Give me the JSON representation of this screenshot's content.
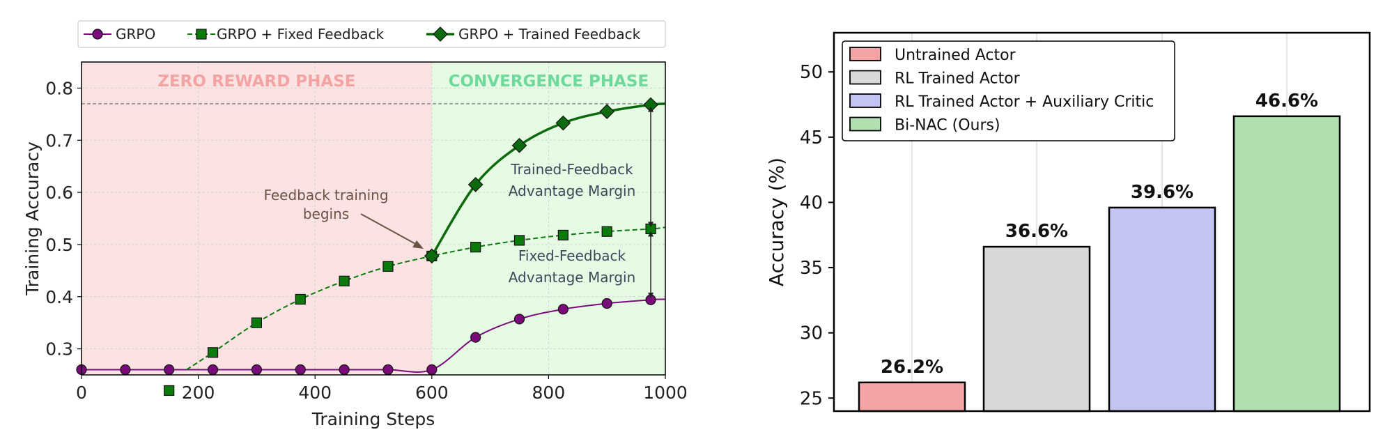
{
  "chart_data": [
    {
      "type": "line",
      "xlabel": "Training Steps",
      "ylabel": "Training Accuracy",
      "xlim": [
        0,
        1000
      ],
      "ylim": [
        0.25,
        0.85
      ],
      "xticks": [
        "0",
        "200",
        "400",
        "600",
        "800",
        "1000"
      ],
      "yticks": [
        "0.3",
        "0.4",
        "0.5",
        "0.6",
        "0.7",
        "0.8"
      ],
      "grid": true,
      "legend_position": "top",
      "phases": [
        {
          "label": "ZERO REWARD PHASE",
          "x_range": [
            0,
            600
          ],
          "color": "#fbe3e3",
          "label_color": "#f4a3a3"
        },
        {
          "label": "CONVERGENCE PHASE",
          "x_range": [
            600,
            1000
          ],
          "color": "#e6fbe4",
          "label_color": "#6fd99c"
        }
      ],
      "reference_line_y": 0.77,
      "annotations": [
        "Feedback training begins",
        "Trained-Feedback Advantage Margin",
        "Fixed-Feedback Advantage Margin"
      ],
      "series": [
        {
          "name": "GRPO",
          "color": "#7b0b7b",
          "marker": "circle",
          "line": "solid",
          "points": [
            [
              0,
              0.26
            ],
            [
              75,
              0.26
            ],
            [
              150,
              0.26
            ],
            [
              225,
              0.26
            ],
            [
              300,
              0.26
            ],
            [
              375,
              0.26
            ],
            [
              450,
              0.26
            ],
            [
              525,
              0.26
            ],
            [
              600,
              0.26
            ],
            [
              675,
              0.322
            ],
            [
              750,
              0.357
            ],
            [
              825,
              0.376
            ],
            [
              900,
              0.387
            ],
            [
              975,
              0.394
            ],
            [
              1000,
              0.395
            ]
          ]
        },
        {
          "name": "GRPO + Fixed Feedback",
          "color": "#0b7a0b",
          "marker": "square",
          "line": "dashed",
          "points": [
            [
              180,
              0.26
            ],
            [
              225,
              0.293
            ],
            [
              300,
              0.35
            ],
            [
              375,
              0.395
            ],
            [
              450,
              0.43
            ],
            [
              525,
              0.458
            ],
            [
              600,
              0.478
            ],
            [
              675,
              0.495
            ],
            [
              750,
              0.508
            ],
            [
              825,
              0.518
            ],
            [
              900,
              0.525
            ],
            [
              975,
              0.53
            ],
            [
              1000,
              0.533
            ]
          ],
          "stray_marker": [
            150,
            0.22
          ]
        },
        {
          "name": "GRPO + Trained Feedback",
          "color": "#0b6a0b",
          "marker": "diamond",
          "line": "solid",
          "points": [
            [
              600,
              0.478
            ],
            [
              675,
              0.615
            ],
            [
              750,
              0.69
            ],
            [
              825,
              0.733
            ],
            [
              900,
              0.755
            ],
            [
              975,
              0.768
            ],
            [
              1000,
              0.77
            ]
          ]
        }
      ]
    },
    {
      "type": "bar",
      "ylabel": "Accuracy (%)",
      "ylim": [
        24,
        53
      ],
      "yticks": [
        "25",
        "30",
        "35",
        "40",
        "45",
        "50"
      ],
      "grid": true,
      "legend_position": "top-left",
      "categories": [
        "Untrained Actor",
        "RL Trained Actor",
        "RL Trained Actor + Auxiliary Critic",
        "Bi-NAC (Ours)"
      ],
      "values": [
        26.2,
        36.6,
        39.6,
        46.6
      ],
      "value_labels": [
        "26.2%",
        "36.6%",
        "39.6%",
        "46.6%"
      ],
      "colors": [
        "#f4a4a4",
        "#d8d8d8",
        "#c4c4f2",
        "#b0dfb0"
      ]
    }
  ]
}
